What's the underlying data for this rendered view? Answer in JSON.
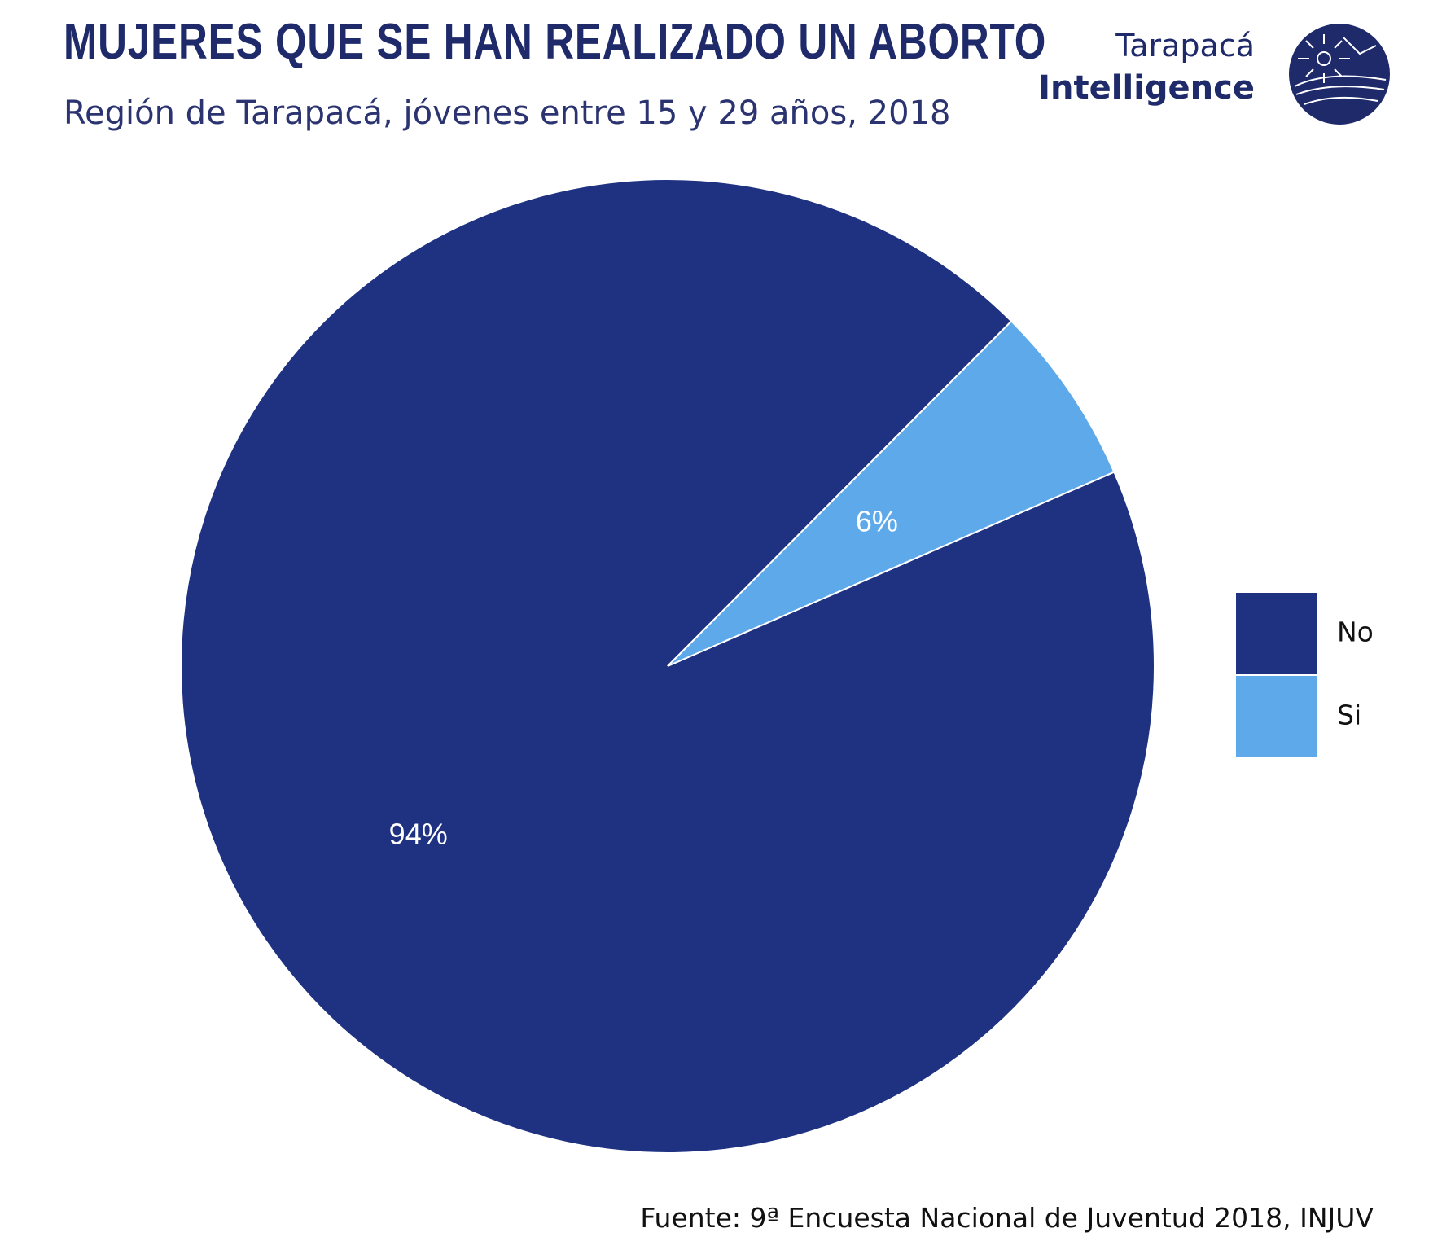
{
  "header": {
    "title": "MUJERES QUE SE HAN REALIZADO UN ABORTO",
    "subtitle": "Región de Tarapacá, jóvenes entre 15 y 29 años, 2018"
  },
  "brand": {
    "line1": "Tarapacá",
    "line2": "Intelligence",
    "logo_icon": "compass-sun-globe-icon"
  },
  "footer": {
    "source": "Fuente: 9ª Encuesta Nacional de Juventud 2018, INJUV"
  },
  "colors": {
    "brand": "#1f2a6b",
    "no": "#1f3282",
    "si": "#5da9ea",
    "label": "#ffffff"
  },
  "chart_data": {
    "type": "pie",
    "categories": [
      "No",
      "Si"
    ],
    "values": [
      94,
      6
    ],
    "labels": [
      "94%",
      "6%"
    ],
    "unit": "%",
    "legend_position": "right"
  }
}
